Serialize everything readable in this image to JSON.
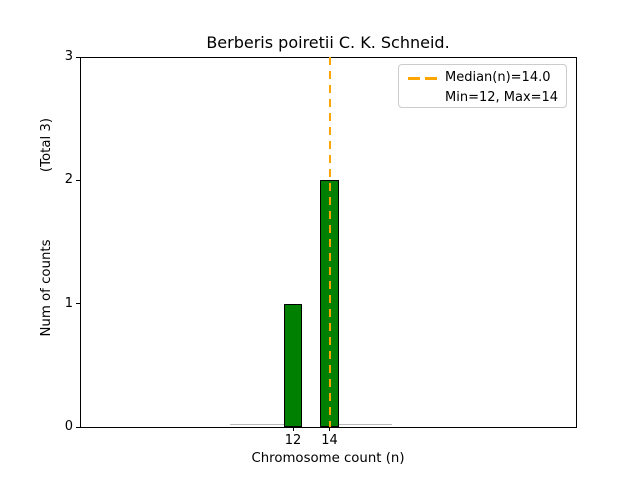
{
  "chart_data": {
    "type": "bar",
    "title": "Berberis poiretii C. K. Schneid.",
    "xlabel": "Chromosome count (n)",
    "ylabel": "Num of counts",
    "total_label": "(Total 3)",
    "categories": [
      12,
      14
    ],
    "values": [
      1,
      2
    ],
    "total_counts": 3,
    "xticks": [
      "12",
      "14"
    ],
    "xtick_values": [
      12,
      14
    ],
    "yticks": [
      "0",
      "1",
      "2",
      "3"
    ],
    "ytick_values": [
      0,
      1,
      2,
      3
    ],
    "ylim": [
      0,
      3
    ],
    "median": 14.0,
    "min": 12,
    "max": 14,
    "bar_color": "#008000",
    "bar_edge_color": "#000000",
    "median_line_color": "#FFA500",
    "zero_bin_color": "#b9b9b9",
    "zero_count_bins": [
      [
        8.55,
        11.5
      ],
      [
        14.5,
        17.4
      ]
    ],
    "legend": {
      "position": "upper right",
      "items": [
        {
          "label": "Median(n)=14.0",
          "handle": "orange-dashed-line"
        },
        {
          "label": "Min=12, Max=14",
          "handle": "none"
        }
      ]
    }
  }
}
